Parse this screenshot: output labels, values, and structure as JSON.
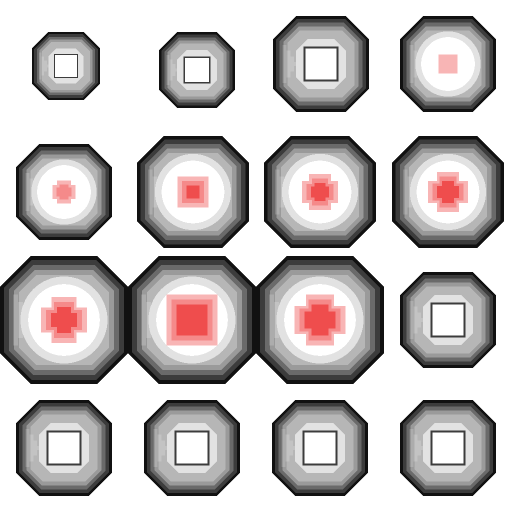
{
  "palette": {
    "ring_outline": "#111111",
    "ring_dark": "#3c3c3c",
    "ring_mid": "#6a6a6a",
    "ring_light": "#9a9a9a",
    "ring_face": "#b6b6b6",
    "glow": "#e2e2e2",
    "center": "#ffffff",
    "core_light": "#f8b5b5",
    "core_mid": "#f58a8a",
    "core_strong": "#ef4d4d",
    "background": "#ffffff"
  },
  "sprites": [
    {
      "name": "empty-socket-tiny",
      "size": "tiny",
      "state": "empty",
      "core_level": 0,
      "core_shape": "none"
    },
    {
      "name": "empty-socket-small",
      "size": "small",
      "state": "empty",
      "core_level": 0,
      "core_shape": "none"
    },
    {
      "name": "empty-socket-medium",
      "size": "medium",
      "state": "empty",
      "core_level": 0,
      "core_shape": "none"
    },
    {
      "name": "charged-socket-faint",
      "size": "medium",
      "state": "charged",
      "core_level": 1,
      "core_shape": "square"
    },
    {
      "name": "charged-socket-level-2",
      "size": "large",
      "state": "charged",
      "core_level": 2,
      "core_shape": "plus"
    },
    {
      "name": "charged-socket-level-3",
      "size": "large",
      "state": "charged",
      "core_level": 3,
      "core_shape": "square"
    },
    {
      "name": "charged-socket-level-4",
      "size": "large",
      "state": "charged",
      "core_level": 4,
      "core_shape": "plus"
    },
    {
      "name": "charged-socket-level-5",
      "size": "large",
      "state": "charged",
      "core_level": 5,
      "core_shape": "cross"
    },
    {
      "name": "charged-socket-wide-1",
      "size": "xlarge",
      "state": "charged",
      "core_level": 5,
      "core_shape": "cross"
    },
    {
      "name": "charged-socket-wide-2",
      "size": "xlarge",
      "state": "charged",
      "core_level": 6,
      "core_shape": "square"
    },
    {
      "name": "charged-socket-wide-3",
      "size": "xlarge",
      "state": "charged",
      "core_level": 6,
      "core_shape": "cross"
    },
    {
      "name": "empty-socket-large",
      "size": "large",
      "state": "empty",
      "core_level": 0,
      "core_shape": "none"
    },
    {
      "name": "empty-socket-large-2",
      "size": "large",
      "state": "empty",
      "core_level": 0,
      "core_shape": "none"
    },
    {
      "name": "empty-socket-large-3",
      "size": "large",
      "state": "empty",
      "core_level": 0,
      "core_shape": "none"
    },
    {
      "name": "empty-socket-large-4",
      "size": "large",
      "state": "empty",
      "core_level": 0,
      "core_shape": "none"
    },
    {
      "name": "empty-socket-large-5",
      "size": "large",
      "state": "empty",
      "core_level": 0,
      "core_shape": "none"
    }
  ]
}
